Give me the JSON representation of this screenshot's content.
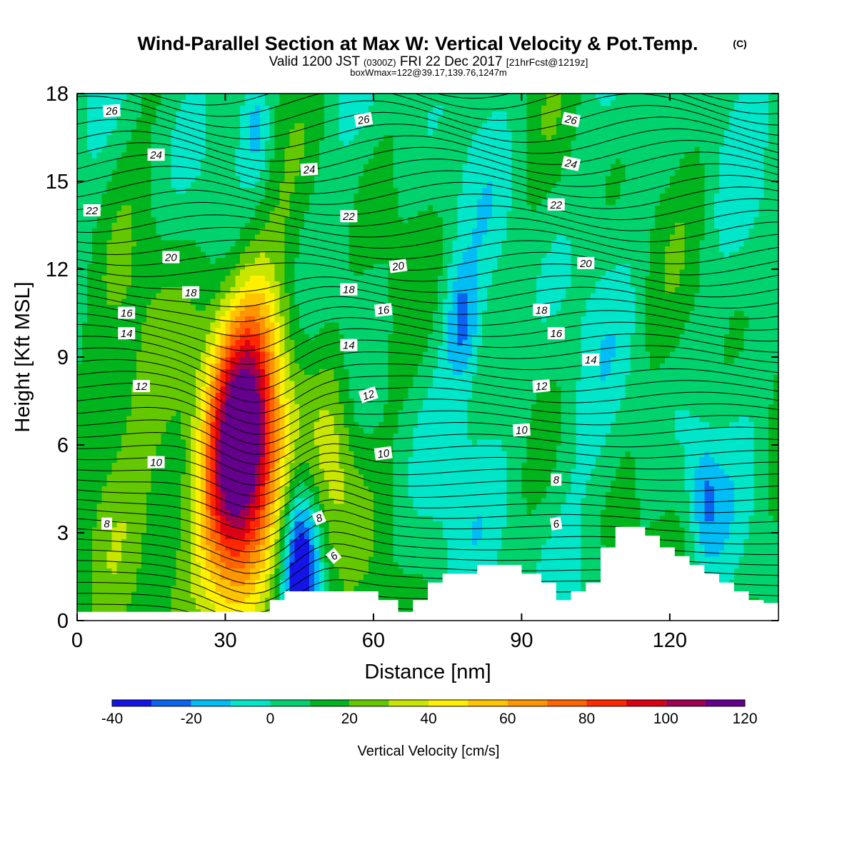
{
  "chart_data": {
    "type": "heatmap",
    "title": "Wind-Parallel Section at Max W: Vertical Velocity & Pot.Temp.",
    "title_mark": "(C)",
    "subtitle": {
      "valid": "Valid 1200 JST",
      "utc": "(0300Z)",
      "date": "FRI 22 Dec 2017",
      "fcst": "[21hrFcst@1219z]"
    },
    "box_info": "boxWmax=122@39.17,139.76,1247m",
    "xlabel": "Distance [nm]",
    "ylabel": "Height [Kft MSL]",
    "xlim": [
      0,
      142
    ],
    "ylim": [
      0,
      18
    ],
    "x_ticks": [
      "0",
      "30",
      "60",
      "90",
      "120"
    ],
    "y_ticks": [
      "0",
      "3",
      "6",
      "9",
      "12",
      "15",
      "18"
    ],
    "colorbar": {
      "label": "Vertical Velocity [cm/s]",
      "tick_labels": [
        "-40",
        "-20",
        "0",
        "20",
        "40",
        "60",
        "80",
        "100",
        "120"
      ],
      "bounds": [
        -40,
        120
      ],
      "bins": [
        {
          "lo": -40,
          "hi": -30,
          "color": "#1414e6"
        },
        {
          "lo": -30,
          "hi": -20,
          "color": "#0a64f0"
        },
        {
          "lo": -20,
          "hi": -10,
          "color": "#00bef5"
        },
        {
          "lo": -10,
          "hi": 0,
          "color": "#00e6c8"
        },
        {
          "lo": 0,
          "hi": 10,
          "color": "#00d26e"
        },
        {
          "lo": 10,
          "hi": 20,
          "color": "#00b41e"
        },
        {
          "lo": 20,
          "hi": 30,
          "color": "#64c800"
        },
        {
          "lo": 30,
          "hi": 40,
          "color": "#c8e600"
        },
        {
          "lo": 40,
          "hi": 50,
          "color": "#fff000"
        },
        {
          "lo": 50,
          "hi": 60,
          "color": "#ffc300"
        },
        {
          "lo": 60,
          "hi": 70,
          "color": "#ff9600"
        },
        {
          "lo": 70,
          "hi": 80,
          "color": "#ff6400"
        },
        {
          "lo": 80,
          "hi": 90,
          "color": "#ff2800"
        },
        {
          "lo": 90,
          "hi": 100,
          "color": "#dc0014"
        },
        {
          "lo": 100,
          "hi": 110,
          "color": "#a00050"
        },
        {
          "lo": 110,
          "hi": 120,
          "color": "#64008c"
        }
      ]
    },
    "vertical_velocity_features": [
      {
        "kind": "updraft",
        "x": 33,
        "y": 5.8,
        "peak": 115
      },
      {
        "kind": "updraft",
        "x": 52,
        "y": 5.6,
        "peak": 40
      },
      {
        "kind": "downdraft",
        "x": 45,
        "y": 2.2,
        "peak": -40
      },
      {
        "kind": "downdraft",
        "x": 36,
        "y": 17.0,
        "peak": -15
      },
      {
        "kind": "downdraft",
        "x": 78,
        "y": 10.2,
        "peak": -15
      },
      {
        "kind": "downdraft",
        "x": 127,
        "y": 4.2,
        "peak": -15
      }
    ],
    "terrain": [
      [
        0,
        0.3
      ],
      [
        39,
        0.3
      ],
      [
        39,
        0.7
      ],
      [
        42,
        0.7
      ],
      [
        42,
        1.0
      ],
      [
        61,
        1.0
      ],
      [
        61,
        0.7
      ],
      [
        65,
        0.7
      ],
      [
        65,
        0.3
      ],
      [
        68,
        0.3
      ],
      [
        68,
        0.7
      ],
      [
        71,
        0.7
      ],
      [
        71,
        1.3
      ],
      [
        74,
        1.3
      ],
      [
        74,
        1.6
      ],
      [
        81,
        1.6
      ],
      [
        81,
        1.9
      ],
      [
        90,
        1.9
      ],
      [
        90,
        1.6
      ],
      [
        94,
        1.6
      ],
      [
        94,
        1.3
      ],
      [
        97,
        1.3
      ],
      [
        97,
        0.7
      ],
      [
        100,
        0.7
      ],
      [
        100,
        1.0
      ],
      [
        103,
        1.0
      ],
      [
        103,
        1.3
      ],
      [
        106,
        1.3
      ],
      [
        106,
        2.5
      ],
      [
        109,
        2.5
      ],
      [
        109,
        3.2
      ],
      [
        115,
        3.2
      ],
      [
        115,
        2.9
      ],
      [
        118,
        2.9
      ],
      [
        118,
        2.5
      ],
      [
        121,
        2.5
      ],
      [
        121,
        2.2
      ],
      [
        124,
        2.2
      ],
      [
        124,
        1.9
      ],
      [
        127,
        1.9
      ],
      [
        127,
        1.6
      ],
      [
        130,
        1.6
      ],
      [
        130,
        1.3
      ],
      [
        133,
        1.3
      ],
      [
        133,
        1.0
      ],
      [
        136,
        1.0
      ],
      [
        136,
        0.7
      ],
      [
        139,
        0.7
      ],
      [
        139,
        0.6
      ],
      [
        142,
        0.6
      ]
    ],
    "theta_contours": {
      "units": "°C",
      "labels": [
        {
          "text": "26",
          "x": 7,
          "y": 17.4,
          "angle": -4
        },
        {
          "text": "26",
          "x": 58,
          "y": 17.1,
          "angle": -10
        },
        {
          "text": "26",
          "x": 100,
          "y": 17.1,
          "angle": 12
        },
        {
          "text": "24",
          "x": 16,
          "y": 15.9,
          "angle": 0
        },
        {
          "text": "24",
          "x": 47,
          "y": 15.4,
          "angle": -4
        },
        {
          "text": "24",
          "x": 100,
          "y": 15.6,
          "angle": 12
        },
        {
          "text": "22",
          "x": 3,
          "y": 14.0,
          "angle": 0
        },
        {
          "text": "22",
          "x": 55,
          "y": 13.8,
          "angle": 0
        },
        {
          "text": "22",
          "x": 97,
          "y": 14.2,
          "angle": 0
        },
        {
          "text": "20",
          "x": 19,
          "y": 12.4,
          "angle": 0
        },
        {
          "text": "20",
          "x": 65,
          "y": 12.1,
          "angle": -8
        },
        {
          "text": "20",
          "x": 103,
          "y": 12.2,
          "angle": 0
        },
        {
          "text": "18",
          "x": 23,
          "y": 11.2,
          "angle": 0
        },
        {
          "text": "18",
          "x": 55,
          "y": 11.3,
          "angle": 0
        },
        {
          "text": "18",
          "x": 94,
          "y": 10.6,
          "angle": 0
        },
        {
          "text": "16",
          "x": 10,
          "y": 10.5,
          "angle": 0
        },
        {
          "text": "16",
          "x": 62,
          "y": 10.6,
          "angle": -6
        },
        {
          "text": "16",
          "x": 97,
          "y": 9.8,
          "angle": 0
        },
        {
          "text": "14",
          "x": 10,
          "y": 9.8,
          "angle": 0
        },
        {
          "text": "14",
          "x": 55,
          "y": 9.4,
          "angle": 0
        },
        {
          "text": "14",
          "x": 104,
          "y": 8.9,
          "angle": 0
        },
        {
          "text": "12",
          "x": 13,
          "y": 8.0,
          "angle": 0
        },
        {
          "text": "12",
          "x": 59,
          "y": 7.7,
          "angle": -18
        },
        {
          "text": "12",
          "x": 94,
          "y": 8.0,
          "angle": -4
        },
        {
          "text": "10",
          "x": 16,
          "y": 5.4,
          "angle": 0
        },
        {
          "text": "10",
          "x": 62,
          "y": 5.7,
          "angle": -8
        },
        {
          "text": "10",
          "x": 90,
          "y": 6.5,
          "angle": -4
        },
        {
          "text": "8",
          "x": 6,
          "y": 3.3,
          "angle": 0
        },
        {
          "text": "8",
          "x": 49,
          "y": 3.5,
          "angle": -22
        },
        {
          "text": "8",
          "x": 97,
          "y": 4.8,
          "angle": 0
        },
        {
          "text": "6",
          "x": 52,
          "y": 2.2,
          "angle": -40
        },
        {
          "text": "6",
          "x": 97,
          "y": 3.3,
          "angle": -10
        }
      ]
    }
  }
}
